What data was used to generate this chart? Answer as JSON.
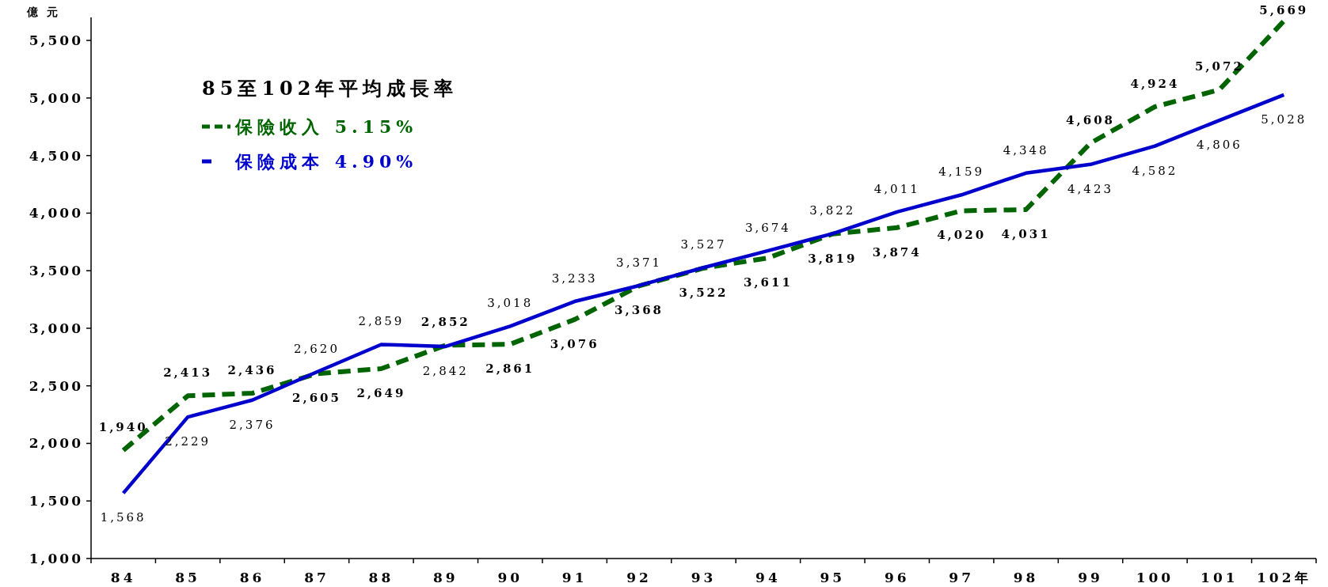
{
  "chart_data": {
    "type": "line",
    "ylabel": "億 元",
    "legend_title": "85至102年平均成長率",
    "legend": "top left",
    "grid": false,
    "categories": [
      "84",
      "85",
      "86",
      "87",
      "88",
      "89",
      "90",
      "91",
      "92",
      "93",
      "94",
      "95",
      "96",
      "97",
      "98",
      "99",
      "100",
      "101",
      "102年"
    ],
    "ylim": [
      1000,
      5700
    ],
    "yticks": [
      {
        "value": 1000,
        "label": "1,000"
      },
      {
        "value": 1500,
        "label": "1,500"
      },
      {
        "value": 2000,
        "label": "2,000"
      },
      {
        "value": 2500,
        "label": "2,500"
      },
      {
        "value": 3000,
        "label": "3,000"
      },
      {
        "value": 3500,
        "label": "3,500"
      },
      {
        "value": 4000,
        "label": "4,000"
      },
      {
        "value": 4500,
        "label": "4,500"
      },
      {
        "value": 5000,
        "label": "5,000"
      },
      {
        "value": 5500,
        "label": "5,500"
      }
    ],
    "series": [
      {
        "name": "保險收入 5.15%",
        "color": "#006400",
        "line_style": "dashed",
        "values": [
          1940,
          2413,
          2436,
          2605,
          2649,
          2852,
          2861,
          3076,
          3368,
          3522,
          3611,
          3819,
          3874,
          4020,
          4031,
          4608,
          4924,
          5072,
          5669
        ],
        "value_labels": [
          "1,940",
          "2,413",
          "2,436",
          "2,605",
          "2,649",
          "2,852",
          "2,861",
          "3,076",
          "3,368",
          "3,522",
          "3,611",
          "3,819",
          "3,874",
          "4,020",
          "4,031",
          "4,608",
          "4,924",
          "5,072",
          "5,669"
        ]
      },
      {
        "name": "保險成本 4.90%",
        "color": "#0000cc",
        "line_style": "solid",
        "values": [
          1568,
          2229,
          2376,
          2620,
          2859,
          2842,
          3018,
          3233,
          3371,
          3527,
          3674,
          3822,
          4011,
          4159,
          4348,
          4423,
          4582,
          4806,
          5028
        ],
        "value_labels": [
          "1,568",
          "2,229",
          "2,376",
          "2,620",
          "2,859",
          "2,842",
          "3,018",
          "3,233",
          "3,371",
          "3,527",
          "3,674",
          "3,822",
          "4,011",
          "4,159",
          "4,348",
          "4,423",
          "4,582",
          "4,806",
          "5,028"
        ]
      }
    ]
  }
}
